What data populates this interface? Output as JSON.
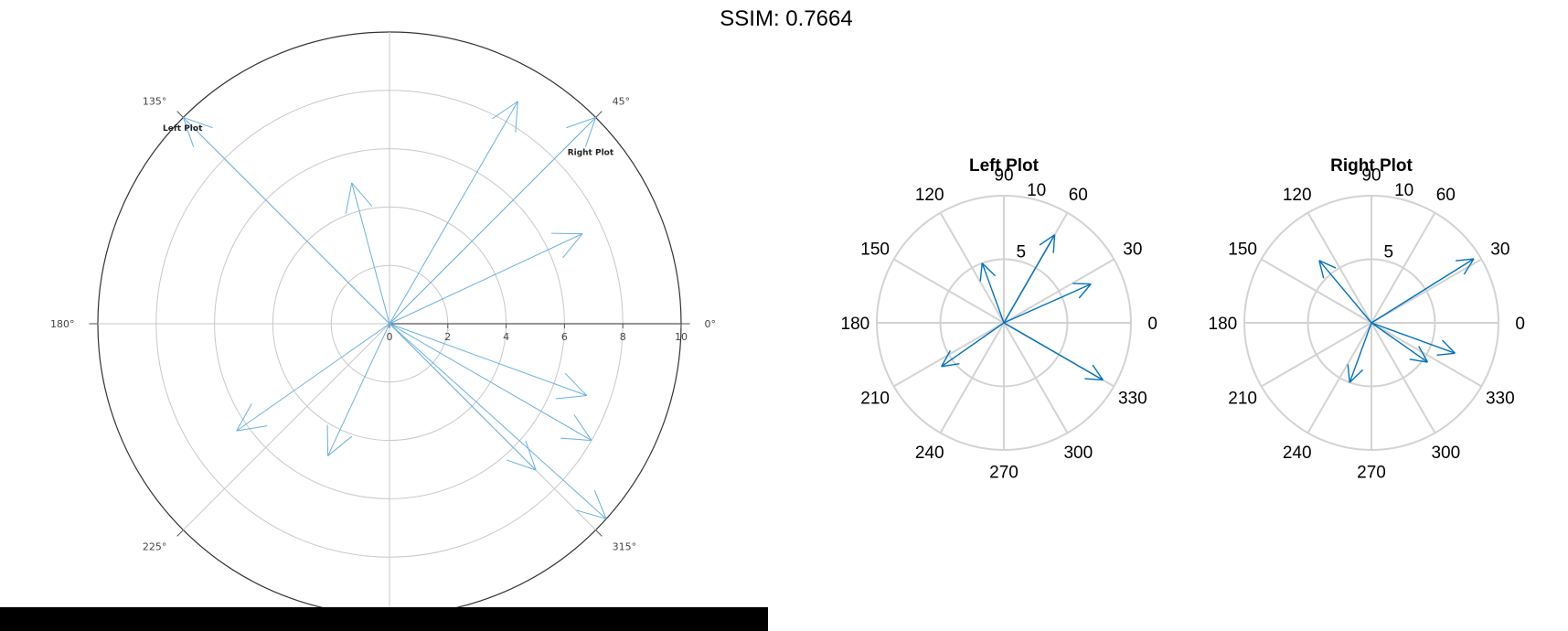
{
  "header": {
    "ssim_label": "SSIM: 0.7664"
  },
  "chart_data": [
    {
      "type": "polar-quiver",
      "title": "",
      "theta_ticks": [
        "0°",
        "45°",
        "135°",
        "180°",
        "225°",
        "315°"
      ],
      "theta_tick_degrees": [
        0,
        45,
        135,
        180,
        225,
        315
      ],
      "r_ticks": [
        "0",
        "2",
        "4",
        "6",
        "8",
        "10"
      ],
      "r_tick_values": [
        0,
        2,
        4,
        6,
        8,
        10
      ],
      "rlim": [
        0,
        10
      ],
      "grid": true,
      "annotations": [
        {
          "text": "Left Plot",
          "r": 9.7,
          "theta": 137
        },
        {
          "text": "Right Plot",
          "r": 9.0,
          "theta": 40
        }
      ],
      "series": [
        {
          "color": "#6ab1e0",
          "arrows": [
            {
              "theta": 135,
              "r": 10.0
            },
            {
              "theta": 105,
              "r": 5.0
            },
            {
              "theta": 60,
              "r": 8.8
            },
            {
              "theta": 45,
              "r": 10.0
            },
            {
              "theta": 25,
              "r": 7.3
            },
            {
              "theta": 215,
              "r": 6.4
            },
            {
              "theta": 245,
              "r": 5.0
            },
            {
              "theta": 330,
              "r": 8.0
            },
            {
              "theta": 315,
              "r": 7.1
            },
            {
              "theta": 340,
              "r": 7.2
            },
            {
              "theta": 318,
              "r": 10.0
            }
          ]
        }
      ]
    },
    {
      "type": "polar-quiver",
      "title": "Left Plot",
      "theta_ticks": [
        "0",
        "30",
        "60",
        "90",
        "120",
        "150",
        "180",
        "210",
        "240",
        "270",
        "300",
        "330"
      ],
      "r_ticks": [
        "5",
        "10"
      ],
      "rlim": [
        0,
        10
      ],
      "grid": true,
      "series": [
        {
          "color": "#0072bd",
          "arrows": [
            {
              "theta": 60,
              "r": 8.0
            },
            {
              "theta": 24,
              "r": 7.5
            },
            {
              "theta": 110,
              "r": 5.0
            },
            {
              "theta": 215,
              "r": 6.0
            },
            {
              "theta": 330,
              "r": 9.0
            }
          ]
        }
      ]
    },
    {
      "type": "polar-quiver",
      "title": "Right Plot",
      "theta_ticks": [
        "0",
        "30",
        "60",
        "90",
        "120",
        "150",
        "180",
        "210",
        "240",
        "270",
        "300",
        "330"
      ],
      "r_ticks": [
        "5",
        "10"
      ],
      "rlim": [
        0,
        10
      ],
      "grid": true,
      "series": [
        {
          "color": "#0072bd",
          "arrows": [
            {
              "theta": 32,
              "r": 9.5
            },
            {
              "theta": 130,
              "r": 6.4
            },
            {
              "theta": 340,
              "r": 7.0
            },
            {
              "theta": 325,
              "r": 5.4
            },
            {
              "theta": 250,
              "r": 5.0
            }
          ]
        }
      ]
    }
  ]
}
